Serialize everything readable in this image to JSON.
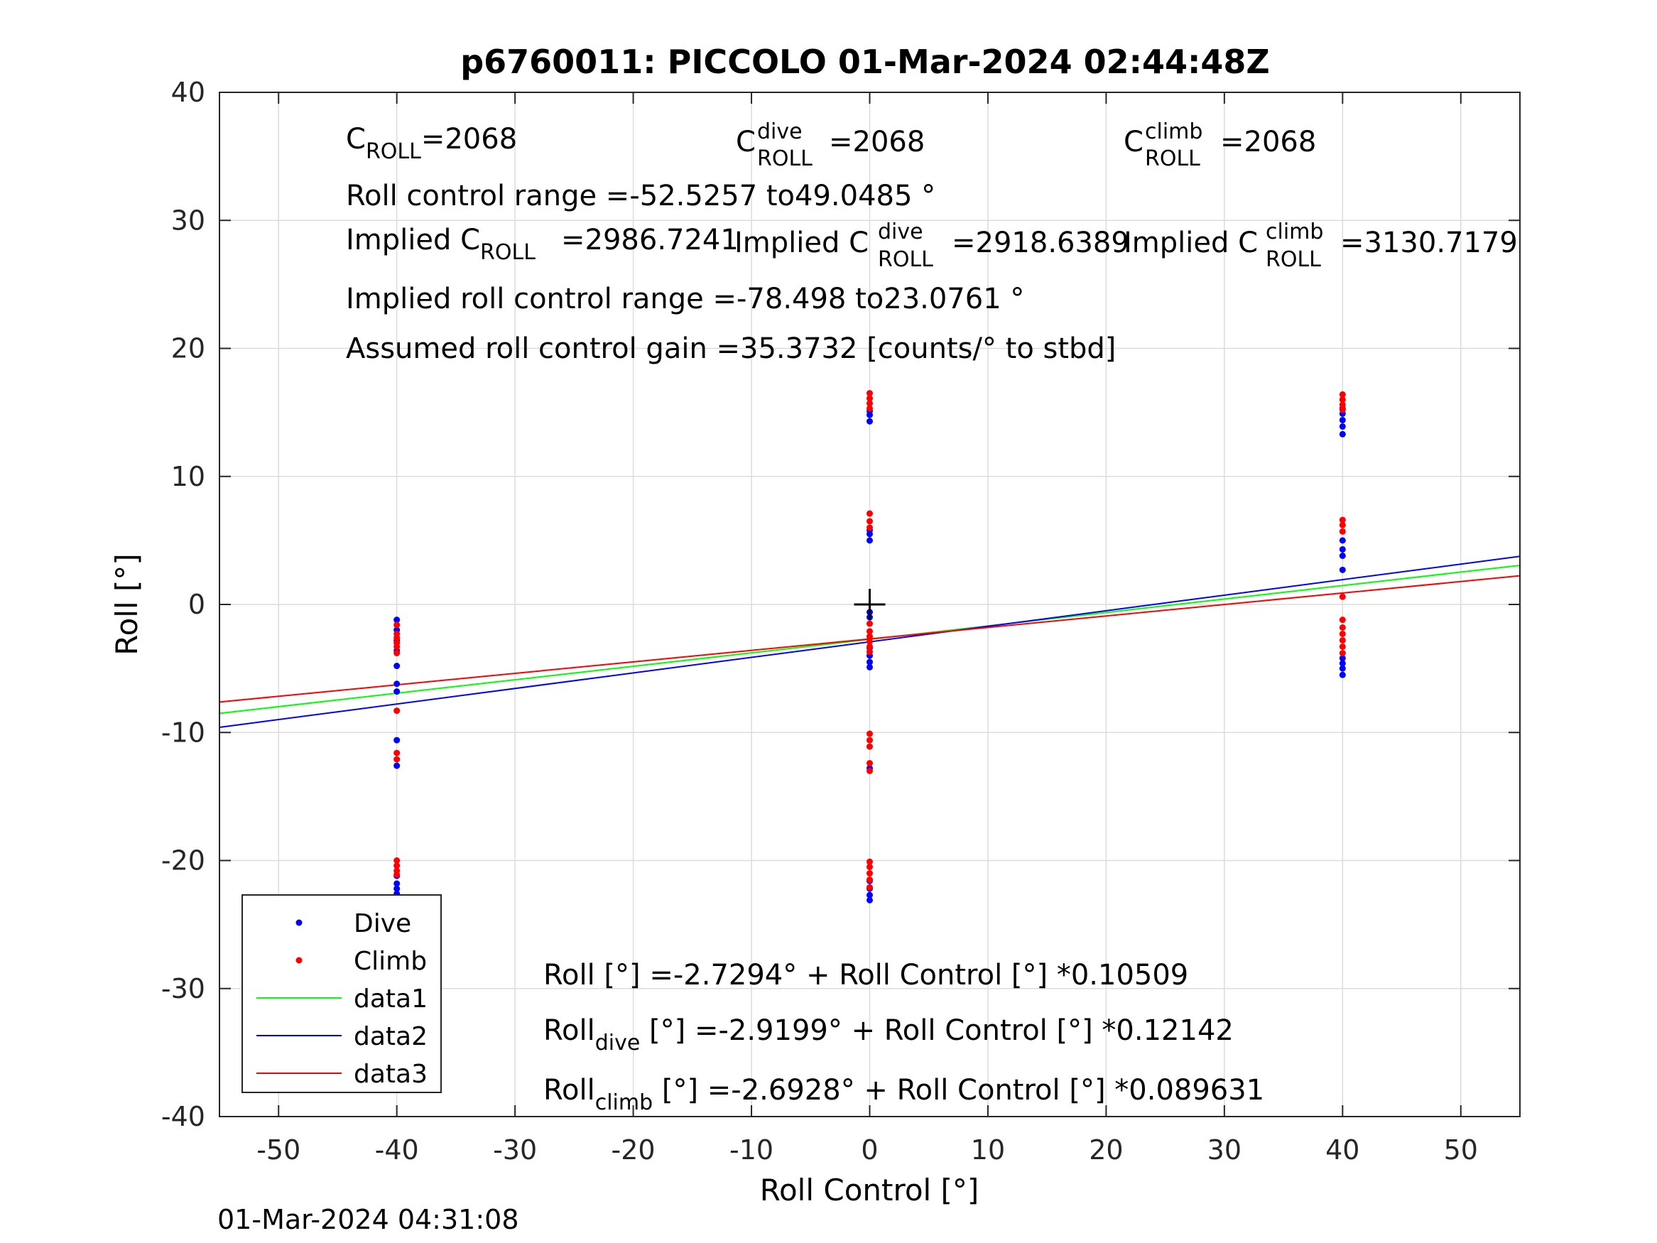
{
  "chart_data": {
    "type": "scatter",
    "title": "p6760011: PICCOLO 01-Mar-2024 02:44:48Z",
    "xlabel": "Roll Control [°]",
    "ylabel": "Roll [°]",
    "xlim": [
      -55,
      55
    ],
    "ylim": [
      -40,
      40
    ],
    "xticks": [
      -50,
      -40,
      -30,
      -20,
      -10,
      0,
      10,
      20,
      30,
      40,
      50
    ],
    "yticks": [
      -40,
      -30,
      -20,
      -10,
      0,
      10,
      20,
      30,
      40
    ],
    "grid": true,
    "legend_position": "bottom-left",
    "footer": "01-Mar-2024 04:31:08",
    "center_marker": {
      "x": 0,
      "y": 0
    },
    "legend": [
      {
        "label": "Dive",
        "kind": "dot",
        "color": "#0000ff"
      },
      {
        "label": "Climb",
        "kind": "dot",
        "color": "#ff0000"
      },
      {
        "label": "data1",
        "kind": "line",
        "color": "#00ff00"
      },
      {
        "label": "data2",
        "kind": "line",
        "color": "#0000ff"
      },
      {
        "label": "data3",
        "kind": "line",
        "color": "#ff0000"
      }
    ],
    "lines": [
      {
        "name": "data1",
        "color": "#00ff00",
        "intercept": -2.7294,
        "slope": 0.10509
      },
      {
        "name": "data2",
        "color": "#0000ff",
        "intercept": -2.9199,
        "slope": 0.12142
      },
      {
        "name": "data3",
        "color": "#ff0000",
        "intercept": -2.6928,
        "slope": 0.089631
      }
    ],
    "scatter": [
      {
        "name": "Dive",
        "color": "#0000ff",
        "points": [
          [
            -40,
            -1.2
          ],
          [
            -40,
            -2.0
          ],
          [
            -40,
            -2.8
          ],
          [
            -40,
            -3.6
          ],
          [
            -40,
            -4.8
          ],
          [
            -40,
            -6.2
          ],
          [
            -40,
            -6.8
          ],
          [
            -40,
            -10.6
          ],
          [
            -40,
            -12.6
          ],
          [
            -40,
            -21.2
          ],
          [
            -40,
            -21.8
          ],
          [
            -40,
            -22.2
          ],
          [
            -40,
            -22.6
          ],
          [
            -40,
            -23.0
          ],
          [
            -40,
            -23.4
          ],
          [
            0,
            14.3
          ],
          [
            0,
            14.8
          ],
          [
            0,
            15.1
          ],
          [
            0,
            5.0
          ],
          [
            0,
            5.5
          ],
          [
            0,
            5.8
          ],
          [
            0,
            -0.6
          ],
          [
            0,
            -1.0
          ],
          [
            0,
            -3.4
          ],
          [
            0,
            -4.0
          ],
          [
            0,
            -4.5
          ],
          [
            0,
            -4.9
          ],
          [
            0,
            -12.8
          ],
          [
            0,
            -21.6
          ],
          [
            0,
            -22.2
          ],
          [
            0,
            -22.7
          ],
          [
            0,
            -23.1
          ],
          [
            40,
            13.3
          ],
          [
            40,
            13.9
          ],
          [
            40,
            14.4
          ],
          [
            40,
            14.9
          ],
          [
            40,
            15.3
          ],
          [
            40,
            5.0
          ],
          [
            40,
            4.3
          ],
          [
            40,
            3.8
          ],
          [
            40,
            2.7
          ],
          [
            40,
            -4.2
          ],
          [
            40,
            -4.6
          ],
          [
            40,
            -5.0
          ],
          [
            40,
            -5.5
          ]
        ]
      },
      {
        "name": "Climb",
        "color": "#ff0000",
        "points": [
          [
            -40,
            -1.6
          ],
          [
            -40,
            -2.3
          ],
          [
            -40,
            -2.6
          ],
          [
            -40,
            -3.0
          ],
          [
            -40,
            -3.3
          ],
          [
            -40,
            -3.8
          ],
          [
            -40,
            -8.3
          ],
          [
            -40,
            -11.6
          ],
          [
            -40,
            -12.1
          ],
          [
            -40,
            -20.0
          ],
          [
            -40,
            -20.4
          ],
          [
            -40,
            -20.8
          ],
          [
            -40,
            -21.1
          ],
          [
            0,
            16.5
          ],
          [
            0,
            16.1
          ],
          [
            0,
            15.7
          ],
          [
            0,
            15.3
          ],
          [
            0,
            7.1
          ],
          [
            0,
            6.5
          ],
          [
            0,
            6.0
          ],
          [
            0,
            -1.5
          ],
          [
            0,
            -2.1
          ],
          [
            0,
            -2.5
          ],
          [
            0,
            -2.9
          ],
          [
            0,
            -3.3
          ],
          [
            0,
            -3.7
          ],
          [
            0,
            -10.1
          ],
          [
            0,
            -10.6
          ],
          [
            0,
            -11.1
          ],
          [
            0,
            -12.4
          ],
          [
            0,
            -13.0
          ],
          [
            0,
            -20.1
          ],
          [
            0,
            -20.5
          ],
          [
            0,
            -21.0
          ],
          [
            0,
            -21.5
          ],
          [
            0,
            -22.1
          ],
          [
            40,
            16.4
          ],
          [
            40,
            16.0
          ],
          [
            40,
            15.6
          ],
          [
            40,
            15.2
          ],
          [
            40,
            6.6
          ],
          [
            40,
            6.2
          ],
          [
            40,
            5.7
          ],
          [
            40,
            0.6
          ],
          [
            40,
            -1.2
          ],
          [
            40,
            -1.8
          ],
          [
            40,
            -2.3
          ],
          [
            40,
            -2.8
          ],
          [
            40,
            -3.3
          ],
          [
            40,
            -3.8
          ]
        ]
      }
    ],
    "annotations": {
      "croll": {
        "main": "C",
        "sub": "ROLL",
        "rest": "=2068"
      },
      "croll_dive": {
        "main": "C",
        "sup": "dive",
        "sub": "ROLL",
        "rest": "=2068"
      },
      "croll_climb": {
        "main": "C",
        "sup": "climb",
        "sub": "ROLL",
        "rest": "=2068"
      },
      "range_text": "Roll control range =-52.5257 to49.0485 °",
      "implied": {
        "pre": "Implied C",
        "sub": "ROLL",
        "rest": "=2986.7241"
      },
      "implied_dive": {
        "pre": "Implied C",
        "sup": "dive",
        "sub": "ROLL",
        "rest": "=2918.6389"
      },
      "implied_climb": {
        "pre": "Implied C",
        "sup": "climb",
        "sub": "ROLL",
        "rest": "=3130.7179"
      },
      "implied_range": "Implied roll control range =-78.498 to23.0761 °",
      "gain": "Assumed roll control gain =35.3732 [counts/° to stbd]",
      "fit_all": {
        "pre": "Roll [°] =-2.7294° + Roll Control [°] *0.10509"
      },
      "fit_dive": {
        "pre": "Roll",
        "sub": "dive",
        "rest": " [°] =-2.9199° + Roll Control [°] *0.12142"
      },
      "fit_climb": {
        "pre": "Roll",
        "sub": "climb",
        "rest": " [°] =-2.6928° + Roll Control [°] *0.089631"
      }
    }
  }
}
